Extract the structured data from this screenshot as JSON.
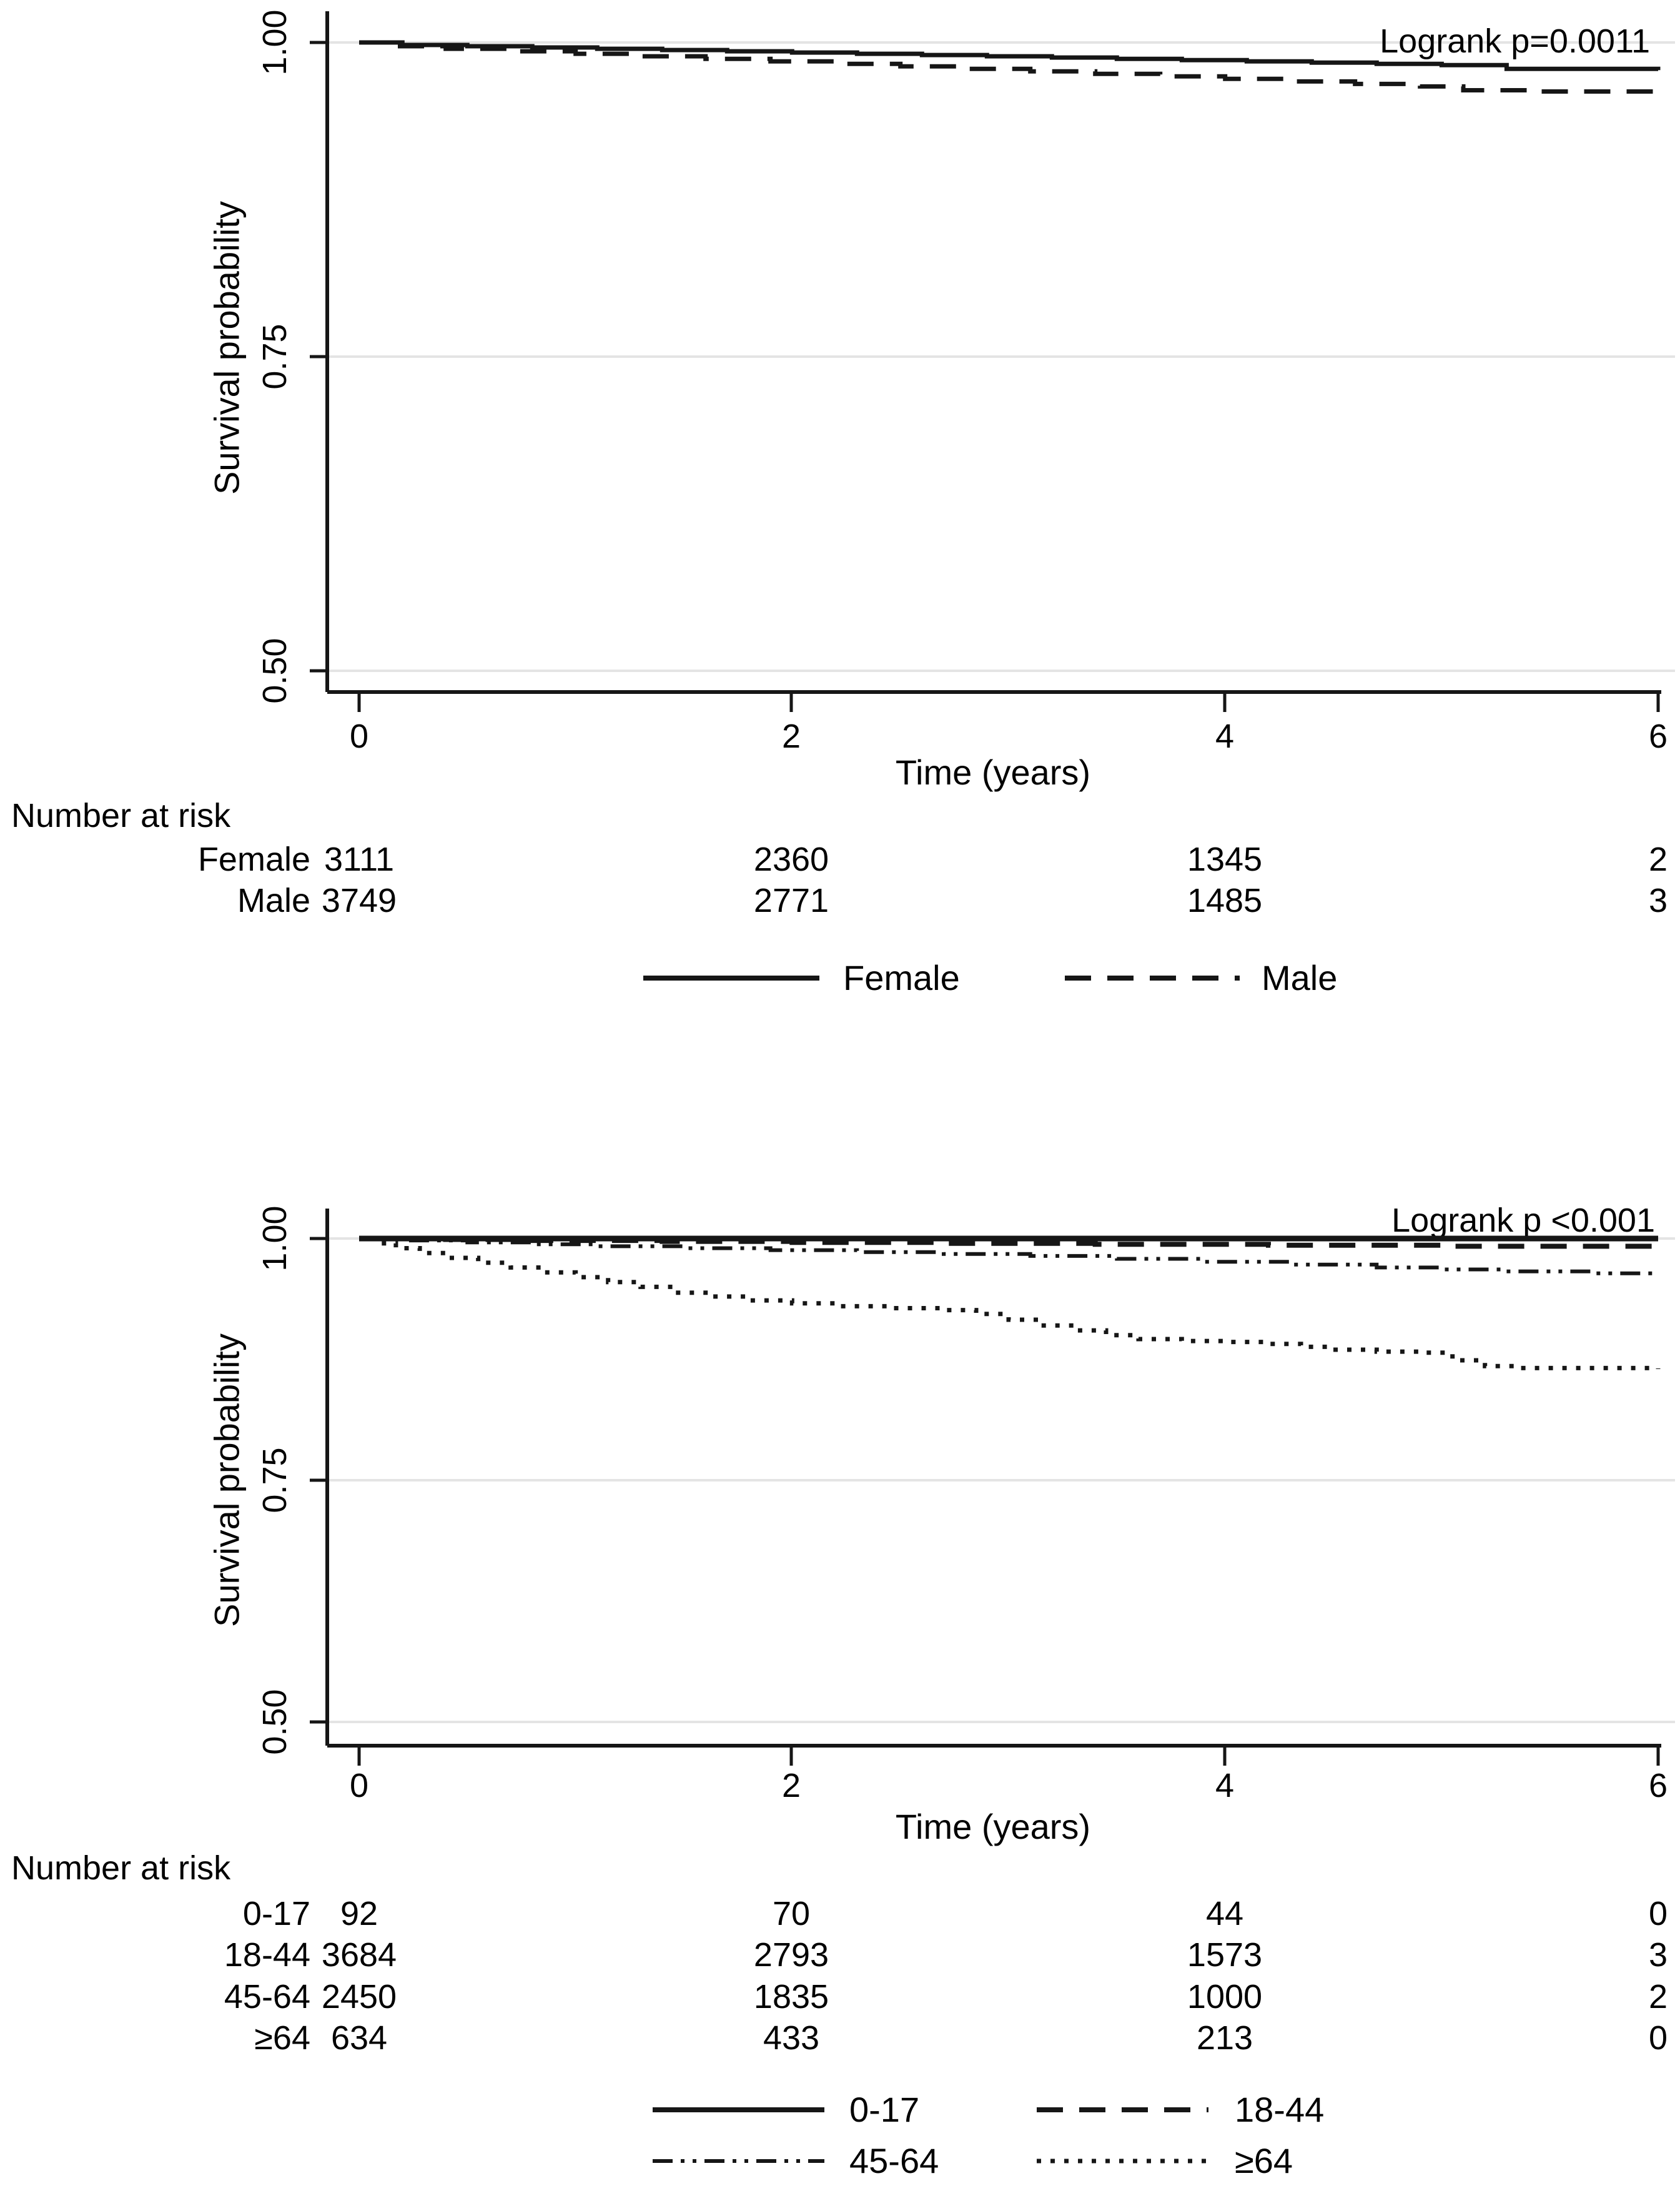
{
  "figure": {
    "description": "Two stacked Kaplan-Meier survival plots with number-at-risk tables",
    "panel_count": 2
  },
  "colors": {
    "curve": "#161616",
    "grid": "#e4e4e4",
    "text": "#000000",
    "background": "#ffffff"
  },
  "chart_data": [
    {
      "type": "line",
      "subtype": "kaplan-meier-step",
      "title": "",
      "annotation": "Logrank p=0.0011",
      "xlabel": "Time (years)",
      "ylabel": "Survival probability",
      "xlim": [
        0,
        6
      ],
      "ylim": [
        0.5,
        1.0
      ],
      "xtick_labels": [
        "0",
        "2",
        "4",
        "6"
      ],
      "ytick_labels": [
        "1.00",
        "0.75",
        "0.50"
      ],
      "ytick_values": [
        1.0,
        0.75,
        0.5
      ],
      "grid": true,
      "legend_position": "bottom-center",
      "series": [
        {
          "name": "Female",
          "style": "solid",
          "points": [
            [
              0,
              1.0
            ],
            [
              0.2,
              0.998
            ],
            [
              0.5,
              0.997
            ],
            [
              0.8,
              0.996
            ],
            [
              1.1,
              0.995
            ],
            [
              1.4,
              0.994
            ],
            [
              1.7,
              0.993
            ],
            [
              2.0,
              0.992
            ],
            [
              2.3,
              0.991
            ],
            [
              2.6,
              0.99
            ],
            [
              2.9,
              0.989
            ],
            [
              3.2,
              0.988
            ],
            [
              3.5,
              0.987
            ],
            [
              3.8,
              0.986
            ],
            [
              4.1,
              0.985
            ],
            [
              4.4,
              0.984
            ],
            [
              4.7,
              0.983
            ],
            [
              5.0,
              0.982
            ],
            [
              5.3,
              0.979
            ],
            [
              6.0,
              0.978
            ]
          ]
        },
        {
          "name": "Male",
          "style": "dashed",
          "points": [
            [
              0,
              1.0
            ],
            [
              0.15,
              0.997
            ],
            [
              0.4,
              0.995
            ],
            [
              0.7,
              0.993
            ],
            [
              1.0,
              0.991
            ],
            [
              1.3,
              0.989
            ],
            [
              1.6,
              0.987
            ],
            [
              1.9,
              0.985
            ],
            [
              2.2,
              0.983
            ],
            [
              2.5,
              0.981
            ],
            [
              2.8,
              0.979
            ],
            [
              3.1,
              0.977
            ],
            [
              3.4,
              0.975
            ],
            [
              3.7,
              0.973
            ],
            [
              4.0,
              0.971
            ],
            [
              4.3,
              0.969
            ],
            [
              4.6,
              0.967
            ],
            [
              4.9,
              0.965
            ],
            [
              5.1,
              0.962
            ],
            [
              5.4,
              0.961
            ],
            [
              6.0,
              0.96
            ]
          ]
        }
      ],
      "risk_table": {
        "title": "Number at risk",
        "times": [
          0,
          2,
          4,
          6
        ],
        "rows": [
          {
            "label": "Female",
            "counts": [
              "3111",
              "2360",
              "1345",
              "2"
            ]
          },
          {
            "label": "Male",
            "counts": [
              "3749",
              "2771",
              "1485",
              "3"
            ]
          }
        ]
      }
    },
    {
      "type": "line",
      "subtype": "kaplan-meier-step",
      "title": "",
      "annotation": "Logrank p <0.001",
      "xlabel": "Time (years)",
      "ylabel": "Survival probability",
      "xlim": [
        0,
        6
      ],
      "ylim": [
        0.5,
        1.0
      ],
      "xtick_labels": [
        "0",
        "2",
        "4",
        "6"
      ],
      "ytick_labels": [
        "1.00",
        "0.75",
        "0.50"
      ],
      "ytick_values": [
        1.0,
        0.75,
        0.5
      ],
      "grid": true,
      "legend_position": "bottom-center",
      "series": [
        {
          "name": "0-17",
          "style": "solid",
          "points": [
            [
              0,
              1.0
            ],
            [
              6,
              1.0
            ]
          ]
        },
        {
          "name": "18-44",
          "style": "dashed",
          "points": [
            [
              0,
              1.0
            ],
            [
              0.3,
              0.999
            ],
            [
              0.8,
              0.998
            ],
            [
              1.4,
              0.997
            ],
            [
              2.0,
              0.996
            ],
            [
              2.7,
              0.995
            ],
            [
              3.4,
              0.994
            ],
            [
              4.2,
              0.993
            ],
            [
              5.0,
              0.992
            ],
            [
              6.0,
              0.991
            ]
          ]
        },
        {
          "name": "45-64",
          "style": "dashdotdot",
          "points": [
            [
              0,
              1.0
            ],
            [
              0.2,
              0.998
            ],
            [
              0.5,
              0.996
            ],
            [
              0.8,
              0.994
            ],
            [
              1.1,
              0.992
            ],
            [
              1.5,
              0.99
            ],
            [
              1.9,
              0.988
            ],
            [
              2.3,
              0.986
            ],
            [
              2.7,
              0.984
            ],
            [
              3.1,
              0.982
            ],
            [
              3.5,
              0.979
            ],
            [
              3.9,
              0.976
            ],
            [
              4.3,
              0.973
            ],
            [
              4.7,
              0.97
            ],
            [
              5.0,
              0.968
            ],
            [
              5.3,
              0.966
            ],
            [
              5.7,
              0.964
            ],
            [
              6.0,
              0.963
            ]
          ]
        },
        {
          "name": "≥64",
          "style": "dotted",
          "points": [
            [
              0,
              1.0
            ],
            [
              0.08,
              0.995
            ],
            [
              0.17,
              0.99
            ],
            [
              0.28,
              0.985
            ],
            [
              0.4,
              0.98
            ],
            [
              0.55,
              0.975
            ],
            [
              0.7,
              0.97
            ],
            [
              0.85,
              0.965
            ],
            [
              1.0,
              0.96
            ],
            [
              1.15,
              0.955
            ],
            [
              1.3,
              0.95
            ],
            [
              1.45,
              0.944
            ],
            [
              1.6,
              0.94
            ],
            [
              1.8,
              0.936
            ],
            [
              2.0,
              0.933
            ],
            [
              2.2,
              0.93
            ],
            [
              2.45,
              0.928
            ],
            [
              2.7,
              0.926
            ],
            [
              2.85,
              0.922
            ],
            [
              3.0,
              0.916
            ],
            [
              3.15,
              0.91
            ],
            [
              3.3,
              0.905
            ],
            [
              3.45,
              0.9
            ],
            [
              3.6,
              0.896
            ],
            [
              3.8,
              0.894
            ],
            [
              4.0,
              0.893
            ],
            [
              4.2,
              0.891
            ],
            [
              4.35,
              0.888
            ],
            [
              4.5,
              0.885
            ],
            [
              4.7,
              0.883
            ],
            [
              4.9,
              0.882
            ],
            [
              5.05,
              0.874
            ],
            [
              5.2,
              0.868
            ],
            [
              5.35,
              0.866
            ],
            [
              6.0,
              0.865
            ]
          ]
        }
      ],
      "risk_table": {
        "title": "Number at risk",
        "times": [
          0,
          2,
          4,
          6
        ],
        "rows": [
          {
            "label": "0-17",
            "counts": [
              "92",
              "70",
              "44",
              "0"
            ]
          },
          {
            "label": "18-44",
            "counts": [
              "3684",
              "2793",
              "1573",
              "3"
            ]
          },
          {
            "label": "45-64",
            "counts": [
              "2450",
              "1835",
              "1000",
              "2"
            ]
          },
          {
            "label": "≥64",
            "counts": [
              "634",
              "433",
              "213",
              "0"
            ]
          }
        ]
      }
    }
  ]
}
